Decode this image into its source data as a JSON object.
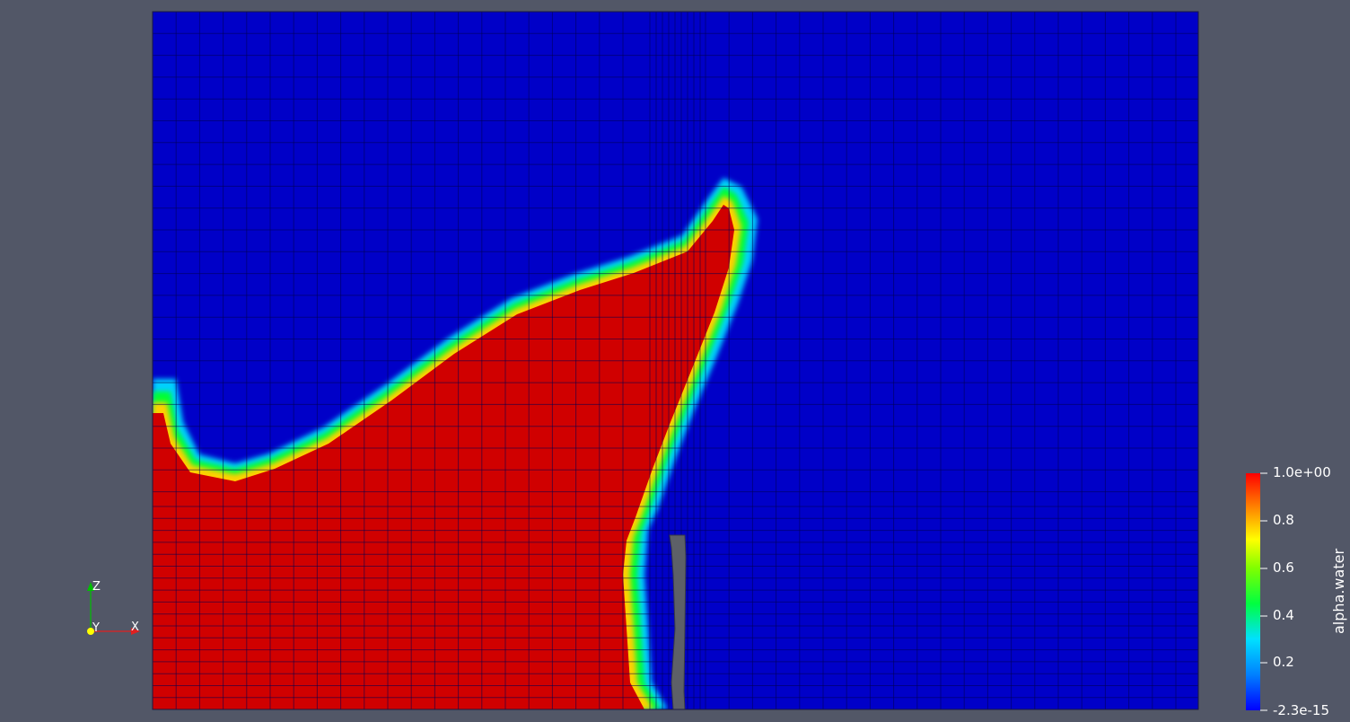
{
  "viewer": {
    "background_color": "#525767"
  },
  "colorbar": {
    "title": "alpha.water",
    "max_label": "1.0e+00",
    "min_label": "-2.3e-15",
    "ticks": [
      {
        "value": 0.8,
        "label": "0.8"
      },
      {
        "value": 0.6,
        "label": "0.6"
      },
      {
        "value": 0.4,
        "label": "0.4"
      },
      {
        "value": 0.2,
        "label": "0.2"
      }
    ],
    "colormap": [
      "#0000ff",
      "#00a0ff",
      "#00ffff",
      "#00ff00",
      "#ffff00",
      "#ff8000",
      "#ff0000"
    ]
  },
  "orientation_axes": {
    "z_label": "Z",
    "y_label": "Y",
    "x_label": "X"
  },
  "field": {
    "water_color": "#d00000",
    "air_color": "#0000c8",
    "obstacle_color": "#5d6068"
  }
}
